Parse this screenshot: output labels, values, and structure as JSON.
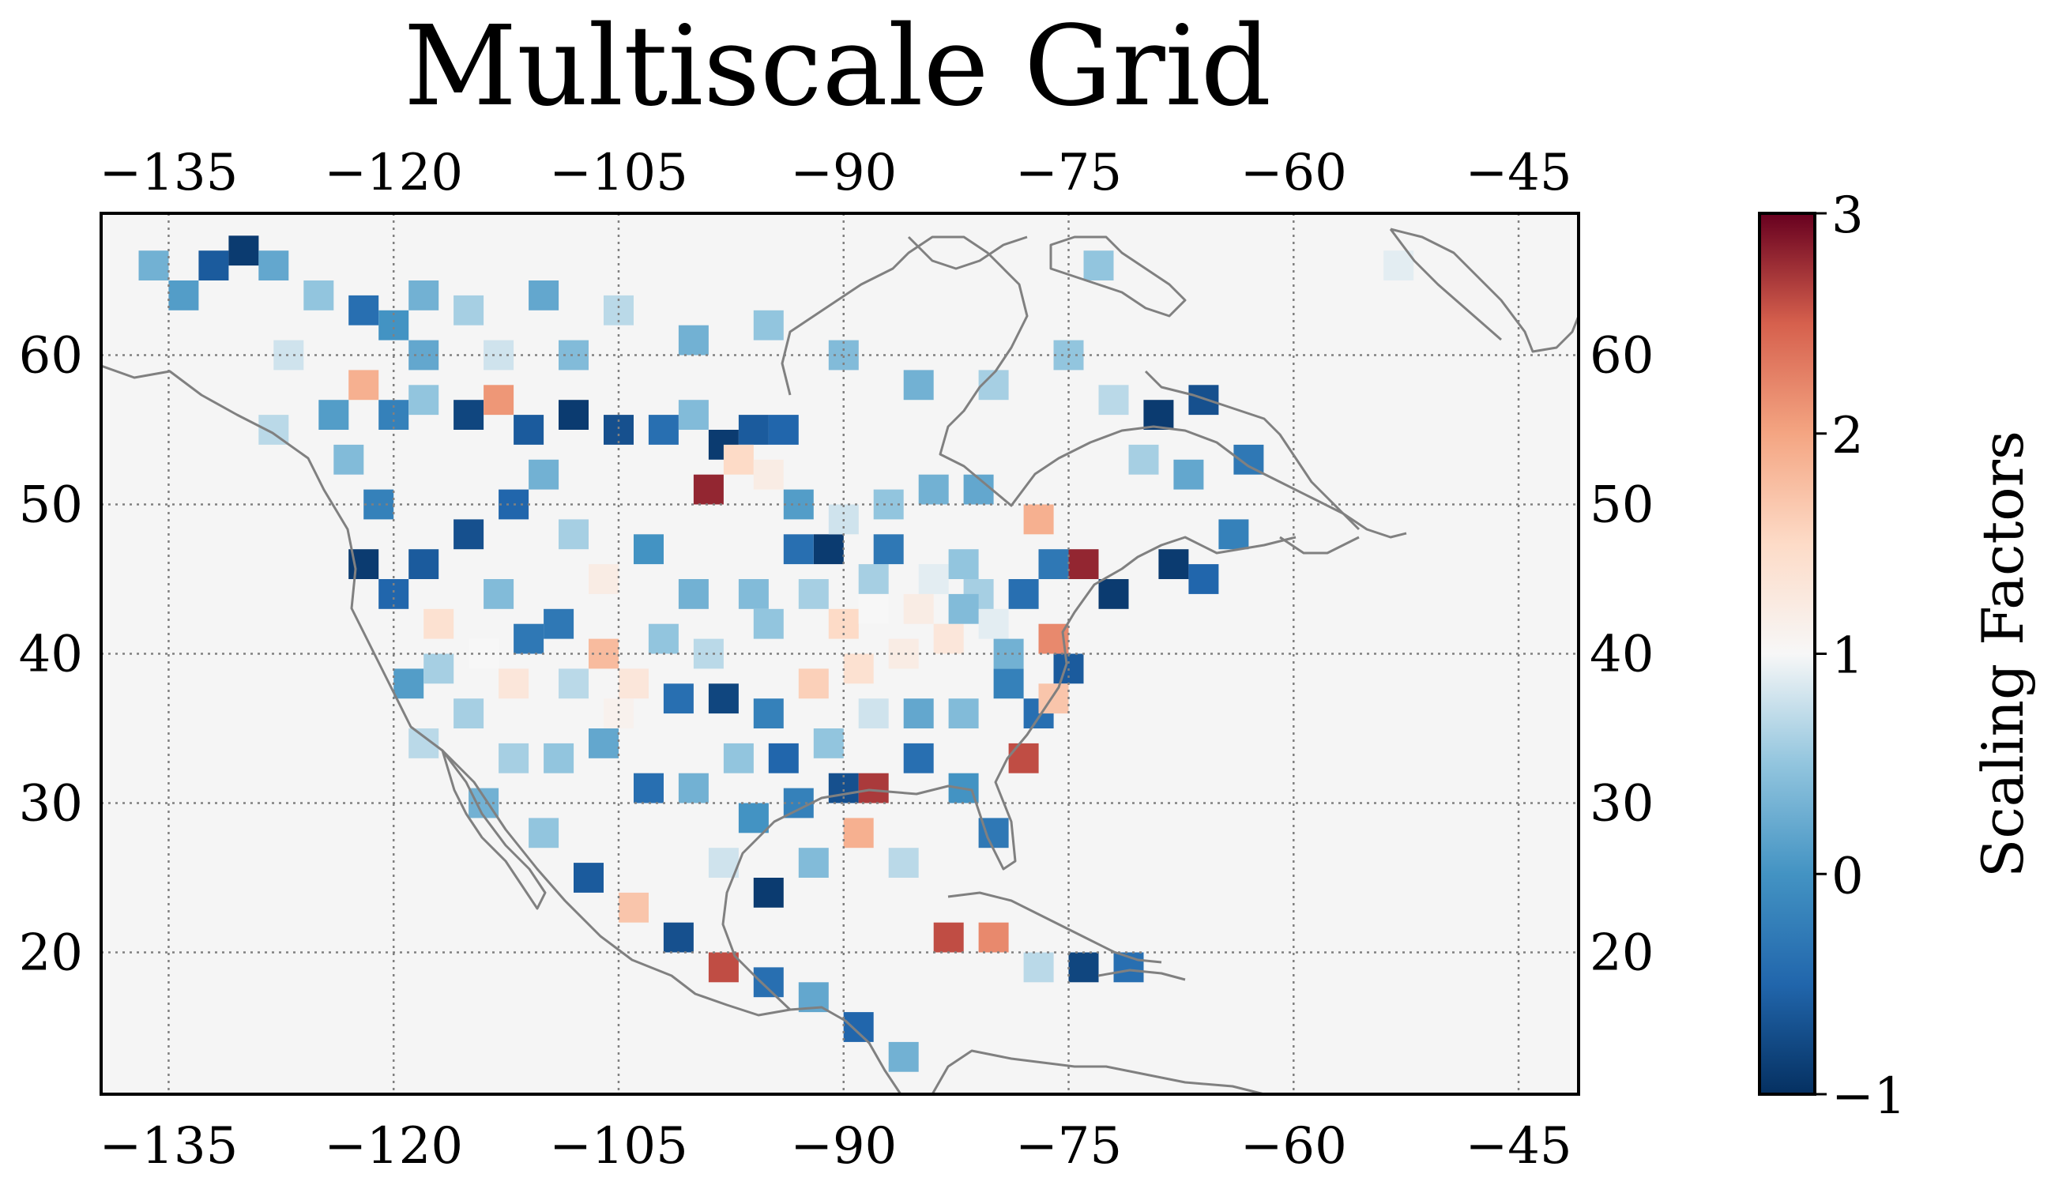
{
  "title": "Multiscale Grid",
  "map": {
    "lon_range": [
      -139.5,
      -41.0
    ],
    "lat_range": [
      10.5,
      69.5
    ],
    "lon_ticks": [
      -135,
      -120,
      -105,
      -90,
      -75,
      -60,
      -45
    ],
    "lon_tick_labels": [
      "−135",
      "−120",
      "−105",
      "−90",
      "−75",
      "−60",
      "−45"
    ],
    "lat_ticks": [
      20,
      30,
      40,
      50,
      60
    ],
    "lat_tick_labels": [
      "20",
      "30",
      "40",
      "50",
      "60"
    ],
    "gridlines": "dotted",
    "background_color": "#f5f5f5",
    "coastline_color": "#808080",
    "colormap": "RdBu_r",
    "colors": {
      "min": "#053061",
      "low": "#2166ac",
      "mid": "#f7f7f7",
      "high": "#b2182b",
      "max": "#67001f"
    },
    "cells": [
      [
        -136,
        66,
        0.3
      ],
      [
        -134,
        64,
        0.1
      ],
      [
        -132,
        66,
        -0.6
      ],
      [
        -130,
        67,
        -0.9
      ],
      [
        -128,
        66,
        0.2
      ],
      [
        -125,
        64,
        0.5
      ],
      [
        -122,
        63,
        -0.4
      ],
      [
        -120,
        62,
        0.0
      ],
      [
        -118,
        64,
        0.3
      ],
      [
        -122,
        58,
        1.9
      ],
      [
        -120,
        56,
        -0.2
      ],
      [
        -118,
        57,
        0.5
      ],
      [
        -115,
        56,
        -0.8
      ],
      [
        -113,
        57,
        2.1
      ],
      [
        -111,
        55,
        -0.6
      ],
      [
        -108,
        56,
        -0.9
      ],
      [
        -105,
        55,
        -0.7
      ],
      [
        -102,
        55,
        -0.4
      ],
      [
        -100,
        56,
        0.4
      ],
      [
        -98,
        54,
        -0.9
      ],
      [
        -96,
        55,
        -0.6
      ],
      [
        -94,
        55,
        -0.5
      ],
      [
        -110,
        52,
        0.3
      ],
      [
        -112,
        50,
        -0.5
      ],
      [
        -115,
        48,
        -0.7
      ],
      [
        -118,
        46,
        -0.6
      ],
      [
        -120,
        44,
        -0.5
      ],
      [
        -122,
        46,
        -0.9
      ],
      [
        -121,
        50,
        -0.2
      ],
      [
        -123,
        53,
        0.4
      ],
      [
        -117,
        42,
        1.4
      ],
      [
        -113,
        44,
        0.4
      ],
      [
        -109,
        42,
        -0.3
      ],
      [
        -106,
        40,
        1.8
      ],
      [
        -104,
        38,
        1.3
      ],
      [
        -101,
        37,
        -0.4
      ],
      [
        -98,
        37,
        -0.8
      ],
      [
        -95,
        36,
        -0.2
      ],
      [
        -92,
        38,
        1.6
      ],
      [
        -89,
        39,
        1.4
      ],
      [
        -86,
        40,
        1.2
      ],
      [
        -83,
        41,
        1.3
      ],
      [
        -80,
        42,
        0.9
      ],
      [
        -78,
        44,
        -0.4
      ],
      [
        -76,
        46,
        -0.3
      ],
      [
        -77,
        49,
        1.9
      ],
      [
        -74,
        46,
        2.8
      ],
      [
        -72,
        44,
        -0.9
      ],
      [
        -68,
        46,
        -0.9
      ],
      [
        -66,
        45,
        -0.5
      ],
      [
        -64,
        48,
        -0.2
      ],
      [
        -67,
        52,
        0.2
      ],
      [
        -69,
        56,
        -0.9
      ],
      [
        -66,
        57,
        -0.7
      ],
      [
        -63,
        53,
        -0.3
      ],
      [
        -81,
        51,
        0.2
      ],
      [
        -84,
        51,
        0.3
      ],
      [
        -87,
        50,
        0.5
      ],
      [
        -91,
        47,
        -0.9
      ],
      [
        -93,
        47,
        -0.4
      ],
      [
        -88,
        45,
        0.6
      ],
      [
        -90,
        42,
        1.5
      ],
      [
        -95,
        42,
        0.5
      ],
      [
        -100,
        44,
        0.3
      ],
      [
        -103,
        47,
        0.0
      ],
      [
        -106,
        45,
        1.2
      ],
      [
        -108,
        48,
        0.6
      ],
      [
        -112,
        38,
        1.3
      ],
      [
        -115,
        36,
        0.6
      ],
      [
        -118,
        34,
        0.7
      ],
      [
        -114,
        30,
        0.3
      ],
      [
        -110,
        28,
        0.5
      ],
      [
        -107,
        25,
        -0.6
      ],
      [
        -104,
        23,
        1.7
      ],
      [
        -101,
        21,
        -0.7
      ],
      [
        -98,
        19,
        2.6
      ],
      [
        -95,
        18,
        -0.4
      ],
      [
        -92,
        17,
        0.2
      ],
      [
        -89,
        15,
        -0.5
      ],
      [
        -86,
        13,
        0.3
      ],
      [
        -83,
        21,
        2.6
      ],
      [
        -80,
        21,
        2.2
      ],
      [
        -77,
        19,
        0.7
      ],
      [
        -74,
        19,
        -0.8
      ],
      [
        -71,
        19,
        -0.4
      ],
      [
        -96,
        29,
        0.0
      ],
      [
        -93,
        30,
        -0.2
      ],
      [
        -90,
        31,
        -0.7
      ],
      [
        -88,
        31,
        2.7
      ],
      [
        -85,
        33,
        -0.4
      ],
      [
        -82,
        31,
        0.0
      ],
      [
        -80,
        28,
        -0.3
      ],
      [
        -78,
        33,
        2.6
      ],
      [
        -77,
        36,
        -0.4
      ],
      [
        -79,
        38,
        -0.2
      ],
      [
        -82,
        36,
        0.4
      ],
      [
        -85,
        36,
        0.2
      ],
      [
        -88,
        36,
        0.8
      ],
      [
        -91,
        34,
        0.5
      ],
      [
        -94,
        33,
        -0.5
      ],
      [
        -97,
        33,
        0.5
      ],
      [
        -100,
        31,
        0.3
      ],
      [
        -103,
        31,
        -0.4
      ],
      [
        -106,
        34,
        0.2
      ],
      [
        -109,
        33,
        0.5
      ],
      [
        -112,
        33,
        0.6
      ],
      [
        -98,
        26,
        0.8
      ],
      [
        -95,
        24,
        -0.9
      ],
      [
        -92,
        26,
        0.4
      ],
      [
        -89,
        28,
        1.9
      ],
      [
        -86,
        26,
        0.7
      ],
      [
        -99,
        51,
        2.8
      ],
      [
        -97,
        53,
        1.5
      ],
      [
        -95,
        52,
        1.2
      ],
      [
        -93,
        50,
        0.1
      ],
      [
        -90,
        49,
        0.8
      ],
      [
        -87,
        47,
        -0.3
      ],
      [
        -84,
        45,
        0.9
      ],
      [
        -82,
        46,
        0.5
      ],
      [
        -79,
        40,
        0.3
      ],
      [
        -81,
        44,
        0.6
      ],
      [
        -76,
        41,
        2.2
      ],
      [
        -75,
        39,
        -0.6
      ],
      [
        -76,
        37,
        1.7
      ],
      [
        -119,
        38,
        0.1
      ],
      [
        -117,
        39,
        0.6
      ],
      [
        -114,
        40,
        1.0
      ],
      [
        -111,
        41,
        -0.3
      ],
      [
        -108,
        38,
        0.7
      ],
      [
        -105,
        36,
        1.1
      ],
      [
        -102,
        41,
        0.5
      ],
      [
        -99,
        40,
        0.7
      ],
      [
        -96,
        44,
        0.4
      ],
      [
        -92,
        44,
        0.6
      ],
      [
        -88,
        43,
        1.0
      ],
      [
        -85,
        43,
        1.2
      ],
      [
        -82,
        43,
        0.4
      ],
      [
        -70,
        53,
        0.6
      ],
      [
        -72,
        57,
        0.7
      ],
      [
        -75,
        60,
        0.5
      ],
      [
        -80,
        58,
        0.6
      ],
      [
        -85,
        58,
        0.3
      ],
      [
        -90,
        60,
        0.4
      ],
      [
        -95,
        62,
        0.5
      ],
      [
        -100,
        61,
        0.3
      ],
      [
        -105,
        63,
        0.7
      ],
      [
        -110,
        64,
        0.2
      ],
      [
        -115,
        63,
        0.6
      ],
      [
        -108,
        60,
        0.4
      ],
      [
        -113,
        60,
        0.8
      ],
      [
        -118,
        60,
        0.2
      ],
      [
        -73,
        66,
        0.5
      ],
      [
        -53,
        66,
        0.9
      ],
      [
        -127,
        60,
        0.8
      ],
      [
        -124,
        56,
        0.1
      ],
      [
        -128,
        55,
        0.7
      ]
    ]
  },
  "colorbar": {
    "label": "Scaling Factors",
    "range": [
      -1,
      3
    ],
    "ticks": [
      -1,
      0,
      1,
      2,
      3
    ],
    "tick_labels": [
      "−1",
      "0",
      "1",
      "2",
      "3"
    ]
  }
}
